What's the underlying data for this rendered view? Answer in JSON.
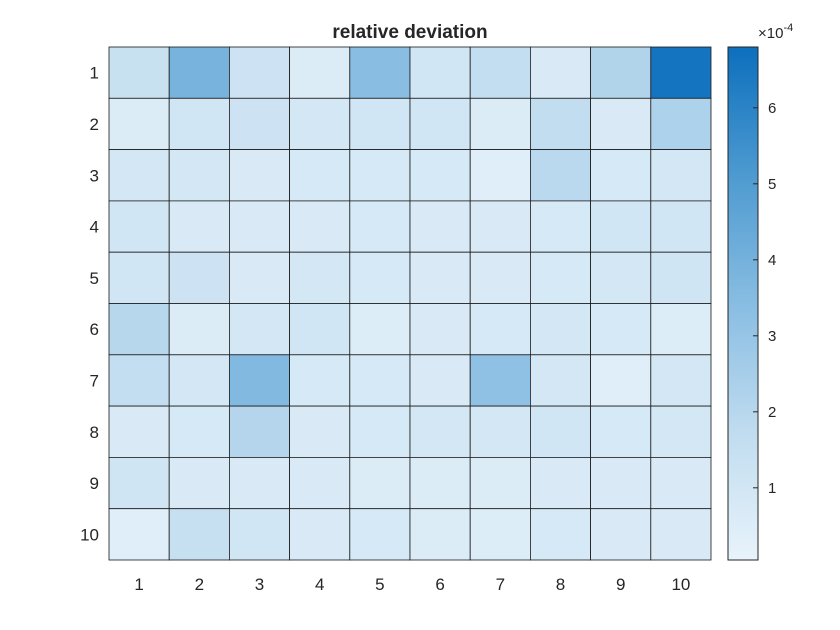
{
  "chart_data": {
    "type": "heatmap",
    "title": "relative deviation",
    "xlabel": "",
    "ylabel": "",
    "x_categories": [
      "1",
      "2",
      "3",
      "4",
      "5",
      "6",
      "7",
      "8",
      "9",
      "10"
    ],
    "y_categories": [
      "1",
      "2",
      "3",
      "4",
      "5",
      "6",
      "7",
      "8",
      "9",
      "10"
    ],
    "values": [
      [
        1.4,
        3.9,
        1.2,
        0.6,
        3.4,
        1.0,
        1.6,
        0.7,
        2.2,
        6.6
      ],
      [
        0.6,
        1.0,
        1.2,
        0.9,
        1.0,
        1.0,
        0.6,
        1.7,
        0.7,
        2.3
      ],
      [
        0.9,
        0.9,
        0.7,
        0.8,
        0.8,
        0.8,
        0.4,
        1.9,
        0.8,
        0.9
      ],
      [
        1.0,
        0.7,
        0.7,
        0.7,
        0.8,
        0.7,
        0.7,
        0.8,
        1.0,
        1.0
      ],
      [
        1.0,
        1.2,
        0.7,
        0.9,
        0.8,
        0.7,
        0.7,
        0.8,
        0.9,
        1.1
      ],
      [
        2.0,
        0.6,
        0.9,
        1.0,
        0.5,
        0.7,
        0.8,
        0.9,
        0.8,
        0.5
      ],
      [
        1.6,
        0.9,
        3.6,
        0.8,
        0.8,
        0.7,
        3.2,
        0.9,
        0.4,
        0.9
      ],
      [
        0.7,
        0.8,
        2.1,
        0.7,
        0.8,
        0.9,
        0.9,
        1.0,
        0.8,
        0.9
      ],
      [
        1.1,
        0.7,
        0.7,
        0.7,
        0.6,
        0.6,
        0.6,
        0.7,
        0.7,
        0.7
      ],
      [
        0.4,
        1.5,
        1.0,
        0.7,
        0.8,
        0.6,
        0.5,
        0.8,
        0.7,
        0.7
      ]
    ],
    "value_multiplier_label": "×10",
    "value_exponent_label": "-4",
    "colorbar_ticks": [
      1,
      2,
      3,
      4,
      5,
      6
    ],
    "colorbar_ticks_labels": [
      "1",
      "2",
      "3",
      "4",
      "5",
      "6"
    ],
    "color_range": [
      0.05,
      6.8
    ],
    "colormap": [
      "#e8f3fb",
      "#c0dcef",
      "#88bde2",
      "#4d9ad0",
      "#0c6fbd"
    ],
    "grid": true,
    "legend": "colorbar-right",
    "cell_border_color": "#1a1a1a",
    "text_color": "#262626",
    "axis_color": "#262626"
  }
}
